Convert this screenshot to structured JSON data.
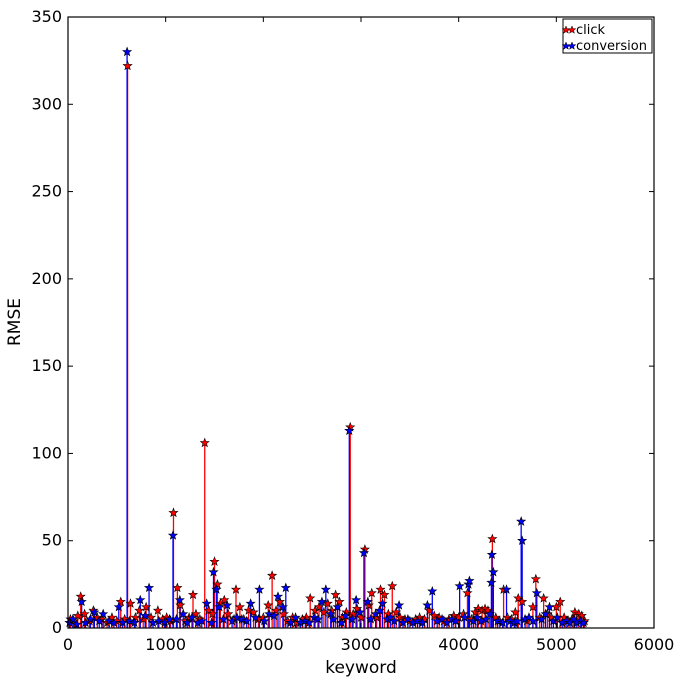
{
  "chart_data": {
    "type": "stem",
    "title": "",
    "xlabel": "keyword",
    "ylabel": "RMSE",
    "xlim": [
      0,
      6000
    ],
    "ylim": [
      0,
      350
    ],
    "xticks": [
      0,
      1000,
      2000,
      3000,
      4000,
      5000,
      6000
    ],
    "yticks": [
      0,
      50,
      100,
      150,
      200,
      250,
      300,
      350
    ],
    "xtick_labels": [
      "0",
      "1000",
      "2000",
      "3000",
      "4000",
      "5000",
      "6000"
    ],
    "ytick_labels": [
      "0",
      "50",
      "100",
      "150",
      "200",
      "250",
      "300",
      "350"
    ],
    "grid": false,
    "legend": {
      "position": "top-right",
      "entries": [
        "click",
        "conversion"
      ]
    },
    "series": [
      {
        "name": "click",
        "color": "#ff0000",
        "marker": "star",
        "points": [
          [
            25,
            5
          ],
          [
            60,
            4
          ],
          [
            100,
            7
          ],
          [
            130,
            18
          ],
          [
            170,
            8
          ],
          [
            220,
            4
          ],
          [
            260,
            10
          ],
          [
            300,
            6
          ],
          [
            345,
            5
          ],
          [
            400,
            3
          ],
          [
            450,
            6
          ],
          [
            500,
            4
          ],
          [
            540,
            15
          ],
          [
            580,
            5
          ],
          [
            610,
            322
          ],
          [
            640,
            14
          ],
          [
            690,
            6
          ],
          [
            730,
            10
          ],
          [
            770,
            5
          ],
          [
            800,
            12
          ],
          [
            850,
            6
          ],
          [
            920,
            10
          ],
          [
            970,
            5
          ],
          [
            1010,
            6
          ],
          [
            1050,
            4
          ],
          [
            1080,
            66
          ],
          [
            1120,
            23
          ],
          [
            1150,
            13
          ],
          [
            1200,
            4
          ],
          [
            1240,
            6
          ],
          [
            1280,
            19
          ],
          [
            1310,
            8
          ],
          [
            1350,
            5
          ],
          [
            1400,
            106
          ],
          [
            1440,
            10
          ],
          [
            1480,
            8
          ],
          [
            1500,
            38
          ],
          [
            1530,
            25
          ],
          [
            1560,
            14
          ],
          [
            1600,
            16
          ],
          [
            1640,
            8
          ],
          [
            1700,
            5
          ],
          [
            1720,
            22
          ],
          [
            1760,
            12
          ],
          [
            1800,
            5
          ],
          [
            1850,
            10
          ],
          [
            1900,
            9
          ],
          [
            1950,
            5
          ],
          [
            2000,
            6
          ],
          [
            2050,
            13
          ],
          [
            2090,
            30
          ],
          [
            2130,
            10
          ],
          [
            2170,
            15
          ],
          [
            2210,
            8
          ],
          [
            2250,
            4
          ],
          [
            2300,
            6
          ],
          [
            2340,
            3
          ],
          [
            2400,
            5
          ],
          [
            2440,
            6
          ],
          [
            2480,
            17
          ],
          [
            2530,
            10
          ],
          [
            2570,
            12
          ],
          [
            2620,
            9
          ],
          [
            2660,
            14
          ],
          [
            2700,
            10
          ],
          [
            2740,
            19
          ],
          [
            2780,
            15
          ],
          [
            2810,
            6
          ],
          [
            2850,
            9
          ],
          [
            2890,
            115
          ],
          [
            2920,
            8
          ],
          [
            2960,
            11
          ],
          [
            3000,
            6
          ],
          [
            3040,
            45
          ],
          [
            3080,
            13
          ],
          [
            3110,
            20
          ],
          [
            3160,
            6
          ],
          [
            3200,
            22
          ],
          [
            3240,
            19
          ],
          [
            3280,
            8
          ],
          [
            3320,
            24
          ],
          [
            3360,
            9
          ],
          [
            3400,
            6
          ],
          [
            3450,
            5
          ],
          [
            3500,
            4
          ],
          [
            3560,
            5
          ],
          [
            3600,
            6
          ],
          [
            3650,
            5
          ],
          [
            3700,
            10
          ],
          [
            3750,
            7
          ],
          [
            3800,
            6
          ],
          [
            3850,
            4
          ],
          [
            3900,
            5
          ],
          [
            3950,
            7
          ],
          [
            4000,
            6
          ],
          [
            4050,
            8
          ],
          [
            4090,
            20
          ],
          [
            4130,
            5
          ],
          [
            4170,
            9
          ],
          [
            4200,
            11
          ],
          [
            4240,
            10
          ],
          [
            4270,
            11
          ],
          [
            4300,
            10
          ],
          [
            4345,
            51
          ],
          [
            4380,
            6
          ],
          [
            4420,
            4
          ],
          [
            4460,
            22
          ],
          [
            4500,
            6
          ],
          [
            4540,
            5
          ],
          [
            4580,
            9
          ],
          [
            4610,
            17
          ],
          [
            4650,
            15
          ],
          [
            4700,
            4
          ],
          [
            4760,
            12
          ],
          [
            4790,
            28
          ],
          [
            4830,
            6
          ],
          [
            4870,
            17
          ],
          [
            4910,
            8
          ],
          [
            4950,
            6
          ],
          [
            5000,
            12
          ],
          [
            5040,
            15
          ],
          [
            5080,
            6
          ],
          [
            5120,
            4
          ],
          [
            5160,
            5
          ],
          [
            5190,
            9
          ],
          [
            5230,
            8
          ],
          [
            5260,
            7
          ],
          [
            5290,
            4
          ]
        ]
      },
      {
        "name": "conversion",
        "color": "#0000ff",
        "marker": "star",
        "points": [
          [
            15,
            3
          ],
          [
            50,
            5
          ],
          [
            90,
            2
          ],
          [
            140,
            15
          ],
          [
            180,
            3
          ],
          [
            230,
            5
          ],
          [
            270,
            9
          ],
          [
            320,
            4
          ],
          [
            360,
            8
          ],
          [
            420,
            4
          ],
          [
            470,
            3
          ],
          [
            520,
            12
          ],
          [
            560,
            3
          ],
          [
            605,
            330
          ],
          [
            630,
            4
          ],
          [
            680,
            3
          ],
          [
            740,
            16
          ],
          [
            790,
            7
          ],
          [
            830,
            23
          ],
          [
            870,
            3
          ],
          [
            930,
            4
          ],
          [
            990,
            3
          ],
          [
            1040,
            5
          ],
          [
            1075,
            53
          ],
          [
            1110,
            5
          ],
          [
            1145,
            16
          ],
          [
            1180,
            8
          ],
          [
            1220,
            3
          ],
          [
            1270,
            6
          ],
          [
            1330,
            3
          ],
          [
            1370,
            4
          ],
          [
            1420,
            14
          ],
          [
            1470,
            3
          ],
          [
            1490,
            32
          ],
          [
            1520,
            22
          ],
          [
            1550,
            12
          ],
          [
            1590,
            5
          ],
          [
            1630,
            13
          ],
          [
            1680,
            4
          ],
          [
            1730,
            6
          ],
          [
            1780,
            5
          ],
          [
            1830,
            4
          ],
          [
            1870,
            14
          ],
          [
            1920,
            6
          ],
          [
            1960,
            22
          ],
          [
            2010,
            4
          ],
          [
            2060,
            8
          ],
          [
            2110,
            7
          ],
          [
            2150,
            18
          ],
          [
            2200,
            12
          ],
          [
            2230,
            23
          ],
          [
            2280,
            3
          ],
          [
            2330,
            6
          ],
          [
            2380,
            3
          ],
          [
            2430,
            4
          ],
          [
            2470,
            3
          ],
          [
            2520,
            6
          ],
          [
            2560,
            5
          ],
          [
            2600,
            15
          ],
          [
            2640,
            22
          ],
          [
            2690,
            8
          ],
          [
            2720,
            5
          ],
          [
            2760,
            12
          ],
          [
            2800,
            3
          ],
          [
            2840,
            7
          ],
          [
            2880,
            113
          ],
          [
            2910,
            5
          ],
          [
            2950,
            16
          ],
          [
            2990,
            9
          ],
          [
            3030,
            43
          ],
          [
            3070,
            15
          ],
          [
            3100,
            5
          ],
          [
            3150,
            8
          ],
          [
            3190,
            10
          ],
          [
            3220,
            14
          ],
          [
            3270,
            5
          ],
          [
            3300,
            6
          ],
          [
            3340,
            4
          ],
          [
            3390,
            13
          ],
          [
            3430,
            3
          ],
          [
            3480,
            5
          ],
          [
            3530,
            3
          ],
          [
            3580,
            4
          ],
          [
            3630,
            3
          ],
          [
            3680,
            13
          ],
          [
            3730,
            21
          ],
          [
            3780,
            4
          ],
          [
            3830,
            5
          ],
          [
            3880,
            3
          ],
          [
            3930,
            5
          ],
          [
            3970,
            4
          ],
          [
            4010,
            24
          ],
          [
            4060,
            6
          ],
          [
            4100,
            25
          ],
          [
            4110,
            27
          ],
          [
            4150,
            4
          ],
          [
            4190,
            6
          ],
          [
            4230,
            4
          ],
          [
            4280,
            5
          ],
          [
            4320,
            8
          ],
          [
            4335,
            26
          ],
          [
            4340,
            42
          ],
          [
            4355,
            32
          ],
          [
            4400,
            4
          ],
          [
            4450,
            3
          ],
          [
            4490,
            22
          ],
          [
            4530,
            4
          ],
          [
            4570,
            3
          ],
          [
            4600,
            4
          ],
          [
            4640,
            61
          ],
          [
            4650,
            50
          ],
          [
            4680,
            5
          ],
          [
            4720,
            6
          ],
          [
            4760,
            4
          ],
          [
            4800,
            20
          ],
          [
            4850,
            5
          ],
          [
            4890,
            8
          ],
          [
            4930,
            12
          ],
          [
            4970,
            4
          ],
          [
            5010,
            6
          ],
          [
            5060,
            3
          ],
          [
            5100,
            4
          ],
          [
            5140,
            3
          ],
          [
            5180,
            5
          ],
          [
            5210,
            3
          ],
          [
            5250,
            4
          ],
          [
            5280,
            3
          ]
        ]
      }
    ]
  }
}
